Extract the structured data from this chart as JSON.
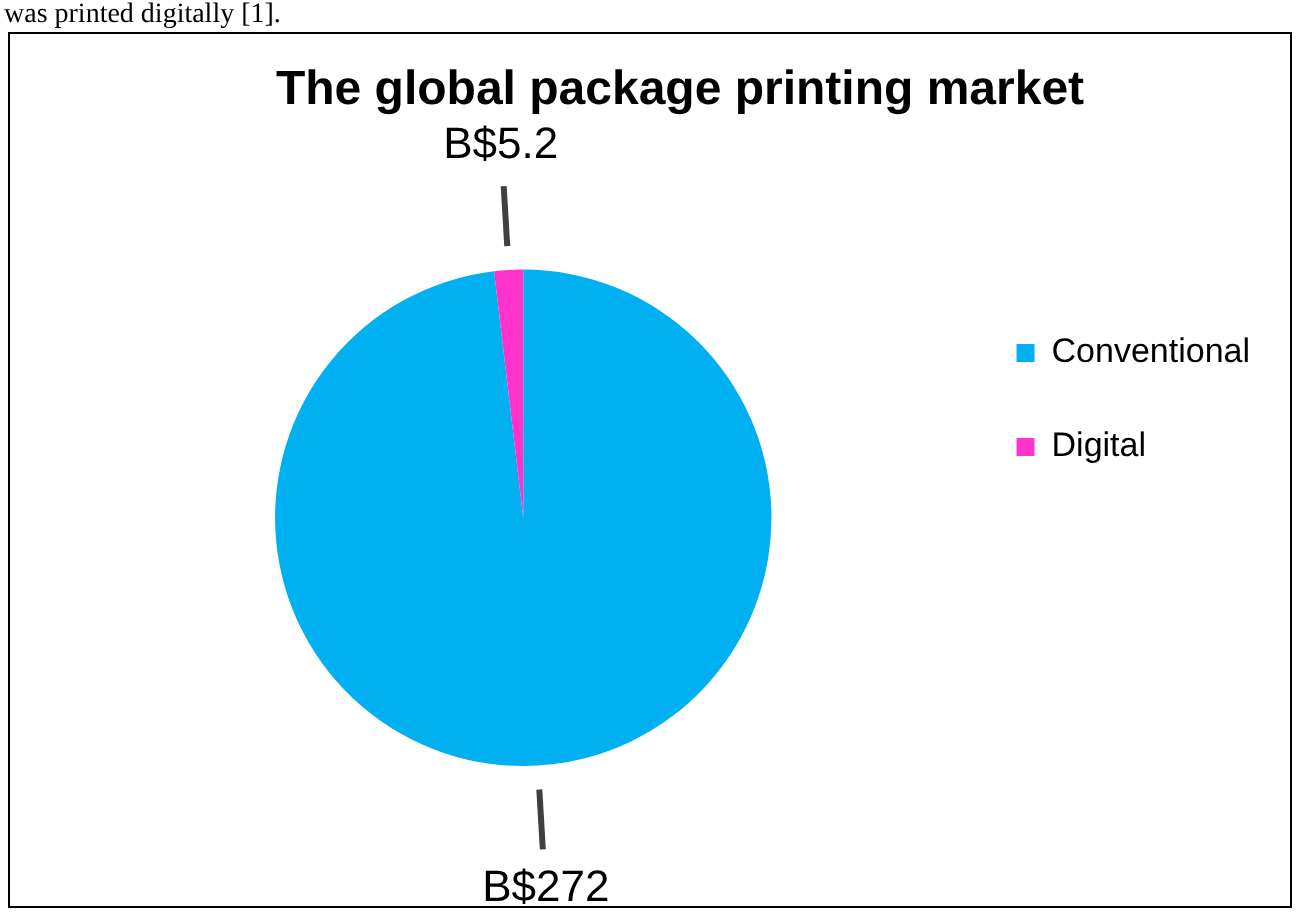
{
  "chart_data": {
    "type": "pie",
    "title": "The global package printing market",
    "categories": [
      "Conventional",
      "Digital"
    ],
    "values": [
      272,
      5.2
    ],
    "value_labels": [
      "B$272",
      "B$5.2"
    ],
    "colors": [
      "#00b0f0",
      "#ff33cc"
    ],
    "legend": "right",
    "annotations": [
      "was printed digitally [1]."
    ]
  }
}
